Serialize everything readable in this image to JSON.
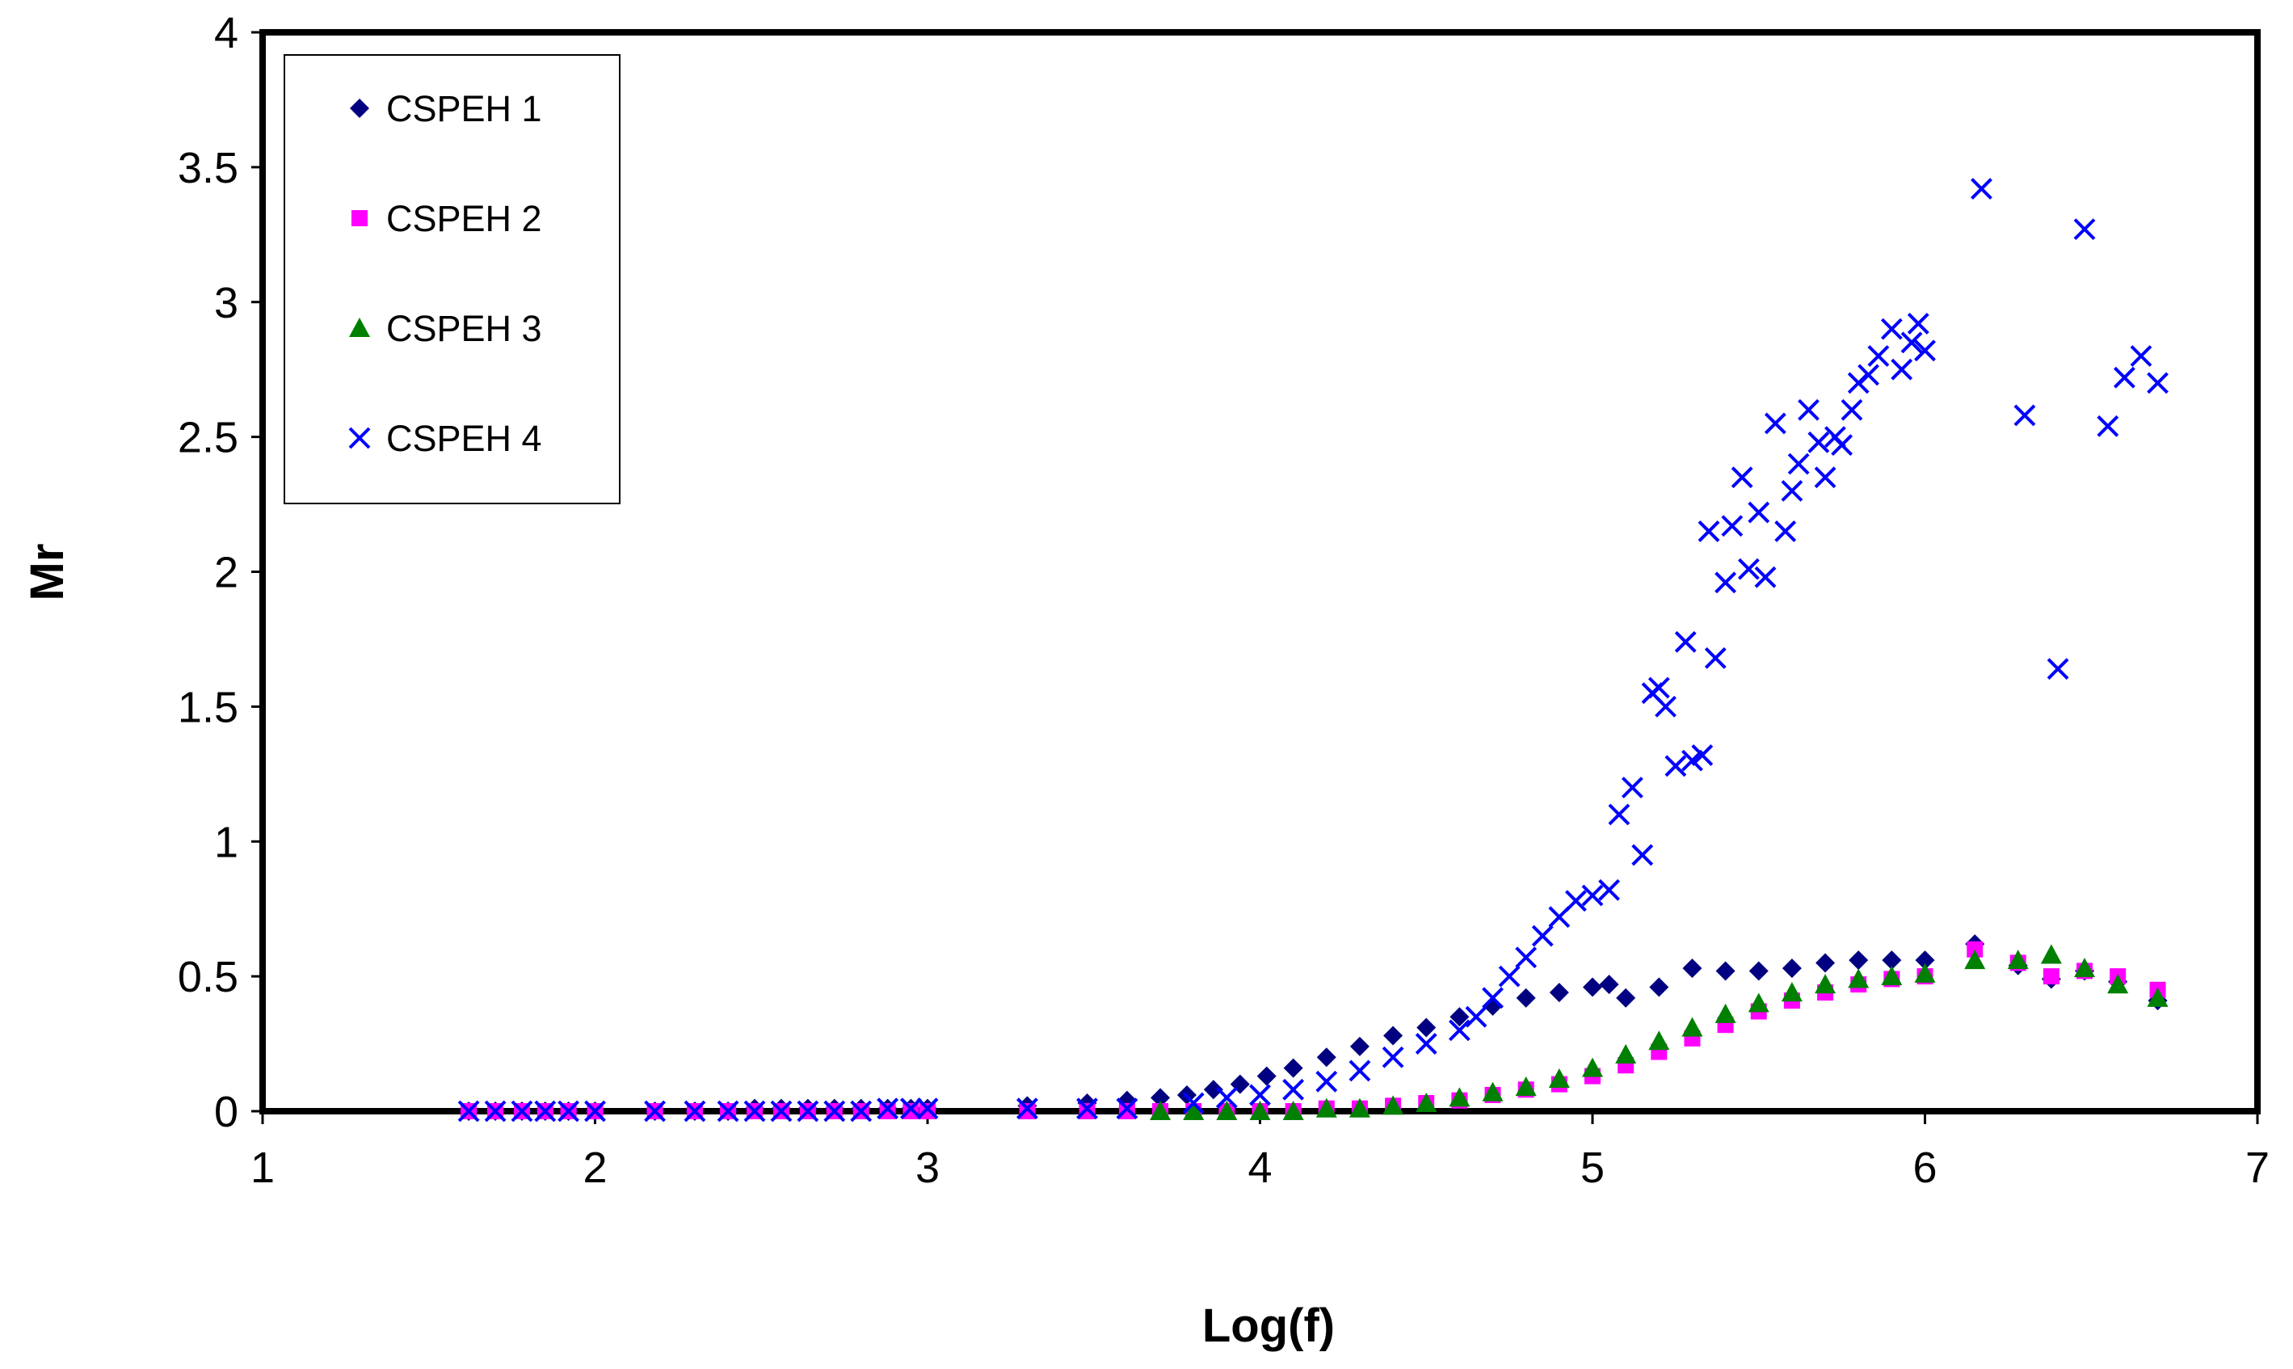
{
  "chart_data": {
    "type": "scatter",
    "title": "",
    "xlabel": "Log(f)",
    "ylabel": "Mr",
    "xlim": [
      1,
      7
    ],
    "ylim": [
      0,
      4
    ],
    "x_ticks": [
      "1",
      "2",
      "3",
      "4",
      "5",
      "6",
      "7"
    ],
    "y_ticks": [
      "0",
      "0.5",
      "1",
      "1.5",
      "2",
      "2.5",
      "3",
      "3.5",
      "4"
    ],
    "grid": false,
    "legend_position": "top-left",
    "series": [
      {
        "name": "CSPEH 1",
        "marker": "diamond",
        "color": "#000080",
        "x": [
          1.62,
          1.7,
          1.78,
          1.85,
          1.92,
          2.0,
          2.18,
          2.3,
          2.4,
          2.48,
          2.56,
          2.64,
          2.72,
          2.8,
          2.88,
          2.95,
          3.0,
          3.3,
          3.48,
          3.6,
          3.7,
          3.78,
          3.86,
          3.94,
          4.02,
          4.1,
          4.2,
          4.3,
          4.4,
          4.5,
          4.6,
          4.7,
          4.8,
          4.9,
          5.0,
          5.05,
          5.1,
          5.2,
          5.3,
          5.4,
          5.5,
          5.6,
          5.7,
          5.8,
          5.9,
          6.0,
          6.15,
          6.28,
          6.38,
          6.48,
          6.58,
          6.7
        ],
        "y": [
          0.0,
          0.0,
          0.0,
          0.0,
          0.0,
          0.0,
          0.0,
          0.0,
          0.0,
          0.01,
          0.01,
          0.01,
          0.01,
          0.01,
          0.01,
          0.01,
          0.01,
          0.02,
          0.03,
          0.04,
          0.05,
          0.06,
          0.08,
          0.1,
          0.13,
          0.16,
          0.2,
          0.24,
          0.28,
          0.31,
          0.35,
          0.39,
          0.42,
          0.44,
          0.46,
          0.47,
          0.42,
          0.46,
          0.53,
          0.52,
          0.52,
          0.53,
          0.55,
          0.56,
          0.56,
          0.56,
          0.62,
          0.54,
          0.49,
          0.52,
          0.48,
          0.41
        ]
      },
      {
        "name": "CSPEH 2",
        "marker": "square",
        "color": "#ff00ff",
        "x": [
          1.62,
          1.7,
          1.78,
          1.85,
          1.92,
          2.0,
          2.18,
          2.3,
          2.4,
          2.48,
          2.56,
          2.64,
          2.72,
          2.8,
          2.88,
          2.95,
          3.0,
          3.3,
          3.48,
          3.6,
          3.7,
          3.8,
          3.9,
          4.0,
          4.1,
          4.2,
          4.3,
          4.4,
          4.5,
          4.6,
          4.7,
          4.8,
          4.9,
          5.0,
          5.1,
          5.2,
          5.3,
          5.4,
          5.5,
          5.6,
          5.7,
          5.8,
          5.9,
          6.0,
          6.15,
          6.28,
          6.38,
          6.48,
          6.58,
          6.7
        ],
        "y": [
          0.0,
          0.0,
          0.0,
          0.0,
          0.0,
          0.0,
          0.0,
          0.0,
          0.0,
          0.0,
          0.0,
          0.0,
          0.0,
          0.0,
          0.0,
          0.0,
          0.0,
          0.0,
          0.0,
          0.0,
          0.0,
          0.0,
          0.0,
          0.0,
          0.0,
          0.01,
          0.01,
          0.02,
          0.03,
          0.04,
          0.06,
          0.08,
          0.1,
          0.13,
          0.17,
          0.22,
          0.27,
          0.32,
          0.37,
          0.41,
          0.44,
          0.47,
          0.49,
          0.5,
          0.6,
          0.55,
          0.5,
          0.52,
          0.5,
          0.45
        ]
      },
      {
        "name": "CSPEH 3",
        "marker": "triangle",
        "color": "#008000",
        "x": [
          3.7,
          3.8,
          3.9,
          4.0,
          4.1,
          4.2,
          4.3,
          4.4,
          4.5,
          4.6,
          4.7,
          4.8,
          4.9,
          5.0,
          5.1,
          5.2,
          5.3,
          5.4,
          5.5,
          5.6,
          5.7,
          5.8,
          5.9,
          6.0,
          6.15,
          6.28,
          6.38,
          6.48,
          6.58,
          6.7
        ],
        "y": [
          0.0,
          0.0,
          0.0,
          0.0,
          0.0,
          0.01,
          0.01,
          0.02,
          0.03,
          0.05,
          0.07,
          0.09,
          0.12,
          0.16,
          0.21,
          0.26,
          0.31,
          0.36,
          0.4,
          0.44,
          0.47,
          0.49,
          0.5,
          0.51,
          0.56,
          0.56,
          0.58,
          0.53,
          0.47,
          0.42
        ]
      },
      {
        "name": "CSPEH 4",
        "marker": "x",
        "color": "#0000ff",
        "x": [
          1.62,
          1.7,
          1.78,
          1.85,
          1.92,
          2.0,
          2.18,
          2.3,
          2.4,
          2.48,
          2.56,
          2.64,
          2.72,
          2.8,
          2.88,
          2.95,
          3.0,
          3.3,
          3.48,
          3.6,
          3.8,
          3.9,
          4.0,
          4.1,
          4.2,
          4.3,
          4.4,
          4.5,
          4.6,
          4.65,
          4.7,
          4.75,
          4.8,
          4.85,
          4.9,
          4.95,
          5.0,
          5.05,
          5.08,
          5.12,
          5.15,
          5.18,
          5.2,
          5.22,
          5.25,
          5.28,
          5.3,
          5.33,
          5.35,
          5.37,
          5.4,
          5.42,
          5.45,
          5.47,
          5.5,
          5.52,
          5.55,
          5.58,
          5.6,
          5.62,
          5.65,
          5.68,
          5.7,
          5.73,
          5.75,
          5.78,
          5.8,
          5.83,
          5.86,
          5.9,
          5.93,
          5.96,
          5.98,
          6.0,
          6.17,
          6.3,
          6.4,
          6.48,
          6.55,
          6.6,
          6.65,
          6.7
        ],
        "y": [
          0.0,
          0.0,
          0.0,
          0.0,
          0.0,
          0.0,
          0.0,
          0.0,
          0.0,
          0.0,
          0.0,
          0.0,
          0.0,
          0.0,
          0.01,
          0.01,
          0.01,
          0.01,
          0.01,
          0.01,
          0.03,
          0.05,
          0.06,
          0.08,
          0.11,
          0.15,
          0.2,
          0.25,
          0.3,
          0.35,
          0.42,
          0.5,
          0.57,
          0.65,
          0.72,
          0.78,
          0.8,
          0.82,
          1.1,
          1.2,
          0.95,
          1.55,
          1.57,
          1.5,
          1.28,
          1.74,
          1.3,
          1.32,
          2.15,
          1.68,
          1.96,
          2.17,
          2.35,
          2.01,
          2.22,
          1.98,
          2.55,
          2.15,
          2.3,
          2.4,
          2.6,
          2.48,
          2.35,
          2.5,
          2.47,
          2.6,
          2.7,
          2.73,
          2.8,
          2.9,
          2.75,
          2.85,
          2.92,
          2.82,
          3.42,
          2.58,
          1.64,
          3.27,
          2.54,
          2.72,
          2.8,
          2.7
        ]
      }
    ]
  }
}
